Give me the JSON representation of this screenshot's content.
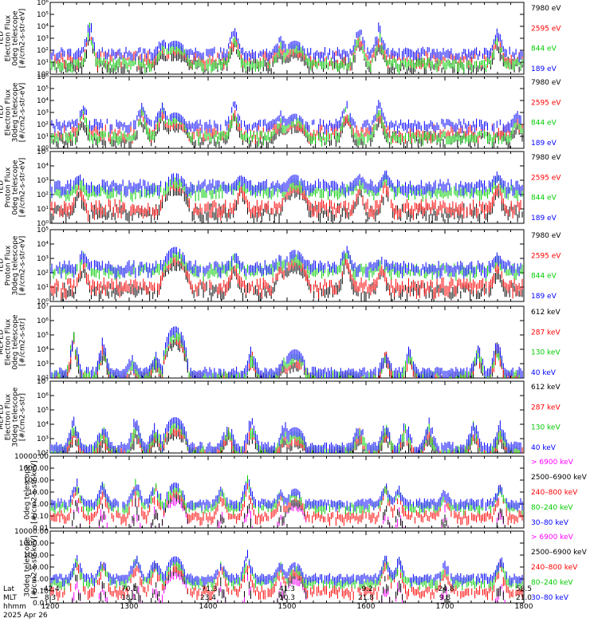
{
  "chart_data": [
    {
      "type": "line",
      "scale": "log",
      "ylim": [
        1,
        1000000
      ],
      "ytick_labels": [
        "10⁰",
        "10¹",
        "10²",
        "10³",
        "10⁴",
        "10⁵",
        "10⁶"
      ],
      "ylabel": [
        "TED",
        "Electron Flux",
        "0deg telescope",
        "[#/cm2-s-str-eV]"
      ],
      "series": [
        {
          "name": "7980 eV",
          "color": "#000000",
          "base": 1.0,
          "noise": 0.5
        },
        {
          "name": "2595 eV",
          "color": "#ff0000",
          "base": 1.5,
          "noise": 0.5
        },
        {
          "name": "844 eV",
          "color": "#00cc00",
          "base": 1.1,
          "noise": 0.3
        },
        {
          "name": "189 eV",
          "color": "#0000ff",
          "base": 2.0,
          "noise": 0.3
        }
      ],
      "bursts": [
        [
          1230,
          0.25,
          5,
          1.4
        ],
        [
          1325,
          0.4,
          3.2,
          1.2
        ],
        [
          1420,
          0.3,
          4.5,
          1.3
        ],
        [
          1455,
          0.4,
          3.4,
          1.2
        ],
        [
          1555,
          0.3,
          4.7,
          1.3
        ],
        [
          1610,
          0.3,
          4.5,
          1.3
        ],
        [
          1740,
          0.25,
          4.4,
          1.3
        ]
      ],
      "domes": [
        [
          1335,
          12,
          2.8
        ],
        [
          1506,
          11,
          2.8
        ]
      ]
    },
    {
      "type": "line",
      "scale": "log",
      "ylim": [
        1,
        1000000
      ],
      "ytick_labels": [
        "10⁰",
        "10¹",
        "10²",
        "10³",
        "10⁴",
        "10⁵",
        "10⁶"
      ],
      "ylabel": [
        "TED",
        "Electron Flux",
        "30deg telescope",
        "[#/cm2-s-str-eV]"
      ],
      "series": [
        {
          "name": "7980 eV",
          "color": "#000000",
          "base": 1.0,
          "noise": 0.5
        },
        {
          "name": "2595 eV",
          "color": "#ff0000",
          "base": 1.6,
          "noise": 0.5
        },
        {
          "name": "844 eV",
          "color": "#00cc00",
          "base": 1.2,
          "noise": 0.3
        },
        {
          "name": "189 eV",
          "color": "#0000ff",
          "base": 2.2,
          "noise": 0.3
        }
      ],
      "bursts": [
        [
          1225,
          0.25,
          4.2,
          1.2
        ],
        [
          1310,
          0.3,
          4.2,
          1.2
        ],
        [
          1325,
          0.4,
          4.4,
          1.2
        ],
        [
          1420,
          0.3,
          4.4,
          1.2
        ],
        [
          1455,
          0.4,
          3.2,
          1.1
        ],
        [
          1545,
          0.3,
          4.4,
          1.2
        ],
        [
          1610,
          0.3,
          4.3,
          1.2
        ],
        [
          1755,
          0.25,
          3.4,
          1.2
        ]
      ],
      "domes": [
        [
          1335,
          12,
          3.0
        ],
        [
          1506,
          11,
          2.9
        ]
      ]
    },
    {
      "type": "line",
      "scale": "log",
      "ylim": [
        1,
        100000
      ],
      "ytick_labels": [
        "10⁰",
        "10¹",
        "10²",
        "10³",
        "10⁴",
        "10⁵"
      ],
      "ylabel": [
        "TED",
        "Proton Flux",
        "0deg telescope",
        "[#/cm2-s-str-eV]"
      ],
      "series": [
        {
          "name": "7980 eV",
          "color": "#000000",
          "base": 1.0,
          "noise": 0.4
        },
        {
          "name": "2595 eV",
          "color": "#ff0000",
          "base": 1.3,
          "noise": 0.4
        },
        {
          "name": "844 eV",
          "color": "#00cc00",
          "base": 2.5,
          "noise": 0.25
        },
        {
          "name": "189 eV",
          "color": "#0000ff",
          "base": 2.8,
          "noise": 0.3
        }
      ],
      "bursts": [
        [
          1222,
          0.3,
          3.6,
          0.8
        ],
        [
          1425,
          0.4,
          3.6,
          0.8
        ],
        [
          1555,
          0.3,
          3.6,
          0.8
        ],
        [
          1615,
          0.25,
          4.0,
          1.0
        ],
        [
          1740,
          0.3,
          3.8,
          0.8
        ]
      ],
      "domes": [
        [
          1335,
          13,
          3.5
        ],
        [
          1506,
          12,
          3.4
        ]
      ]
    },
    {
      "type": "line",
      "scale": "log",
      "ylim": [
        1,
        100000
      ],
      "ytick_labels": [
        "10⁰",
        "10¹",
        "10²",
        "10³",
        "10⁴",
        "10⁵"
      ],
      "ylabel": [
        "TED",
        "Proton Flux",
        "30deg telescope",
        "[#/cm2-s-str-eV]"
      ],
      "series": [
        {
          "name": "7980 eV",
          "color": "#000000",
          "base": 1.0,
          "noise": 0.4
        },
        {
          "name": "2595 eV",
          "color": "#ff0000",
          "base": 1.3,
          "noise": 0.4
        },
        {
          "name": "844 eV",
          "color": "#00cc00",
          "base": 2.4,
          "noise": 0.25
        },
        {
          "name": "189 eV",
          "color": "#0000ff",
          "base": 2.6,
          "noise": 0.3
        }
      ],
      "bursts": [
        [
          1225,
          0.3,
          3.8,
          0.8
        ],
        [
          1420,
          0.3,
          3.7,
          0.8
        ],
        [
          1455,
          0.3,
          3.6,
          0.8
        ],
        [
          1545,
          0.25,
          4.5,
          0.8
        ],
        [
          1612,
          0.3,
          3.4,
          0.8
        ],
        [
          1740,
          0.3,
          3.7,
          0.8
        ]
      ],
      "domes": [
        [
          1335,
          13,
          3.8
        ],
        [
          1506,
          12,
          3.6
        ]
      ]
    },
    {
      "type": "line",
      "scale": "log",
      "ylim": [
        100,
        10000000
      ],
      "ytick_labels": [
        "10²",
        "10³",
        "10⁴",
        "10⁵",
        "10⁶",
        "10⁷"
      ],
      "ylabel": [
        "MEPED",
        "Electron Flux",
        "0deg telescope",
        "[#/cm2-s-str]"
      ],
      "series": [
        {
          "name": "612 keV",
          "color": "#000000",
          "base": 2.1,
          "noise": 0.15
        },
        {
          "name": "287 keV",
          "color": "#ff0000",
          "base": 2.3,
          "noise": 0.15
        },
        {
          "name": "130 keV",
          "color": "#00cc00",
          "base": 2.4,
          "noise": 0.15
        },
        {
          "name": "40 keV",
          "color": "#0000ff",
          "base": 2.6,
          "noise": 0.2
        }
      ],
      "bursts": [
        [
          1218,
          0.3,
          5.8,
          0.4
        ],
        [
          1240,
          0.3,
          5.0,
          0.4
        ],
        [
          1302,
          0.3,
          3.7,
          0.4
        ],
        [
          1320,
          0.3,
          4.0,
          0.4
        ],
        [
          1433,
          0.3,
          4.4,
          0.4
        ],
        [
          1458,
          0.3,
          3.8,
          0.4
        ],
        [
          1575,
          0.3,
          4.4,
          0.4
        ],
        [
          1633,
          0.3,
          4.4,
          0.4
        ],
        [
          1725,
          0.3,
          4.8,
          0.4
        ],
        [
          1740,
          0.3,
          5.2,
          0.4
        ]
      ],
      "domes": [
        [
          1335,
          10,
          5.6
        ],
        [
          1506,
          9,
          4.0
        ]
      ]
    },
    {
      "type": "line",
      "scale": "log",
      "ylim": [
        100,
        10000000
      ],
      "ytick_labels": [
        "10²",
        "10³",
        "10⁴",
        "10⁵",
        "10⁶",
        "10⁷"
      ],
      "ylabel": [
        "MEPED",
        "Electron Flux",
        "30deg telescope",
        "[#/cm2-s-str]"
      ],
      "series": [
        {
          "name": "612 keV",
          "color": "#000000",
          "base": 2.1,
          "noise": 0.15
        },
        {
          "name": "287 keV",
          "color": "#ff0000",
          "base": 2.3,
          "noise": 0.15
        },
        {
          "name": "130 keV",
          "color": "#00cc00",
          "base": 2.4,
          "noise": 0.15
        },
        {
          "name": "40 keV",
          "color": "#0000ff",
          "base": 2.6,
          "noise": 0.2
        }
      ],
      "bursts": [
        [
          1218,
          0.4,
          4.8,
          1.0
        ],
        [
          1240,
          0.4,
          4.4,
          1.0
        ],
        [
          1305,
          0.4,
          4.9,
          1.0
        ],
        [
          1320,
          0.4,
          4.5,
          1.0
        ],
        [
          1415,
          0.4,
          4.7,
          1.0
        ],
        [
          1433,
          0.4,
          4.9,
          1.0
        ],
        [
          1458,
          0.4,
          4.4,
          1.0
        ],
        [
          1555,
          0.4,
          4.6,
          1.0
        ],
        [
          1575,
          0.4,
          4.7,
          1.0
        ],
        [
          1630,
          0.4,
          4.7,
          1.0
        ],
        [
          1648,
          0.4,
          4.5,
          1.0
        ],
        [
          1722,
          0.4,
          4.7,
          1.0
        ],
        [
          1742,
          0.4,
          4.5,
          1.0
        ]
      ],
      "domes": [
        [
          1335,
          10,
          4.5
        ],
        [
          1506,
          9,
          3.8
        ]
      ]
    },
    {
      "type": "line",
      "scale": "log",
      "ylim": [
        0.01,
        10000
      ],
      "ytick_labels": [
        "10000.00",
        "1000.00",
        "100.00",
        "10.00",
        "1.00",
        "0.10",
        "0.01"
      ],
      "ylabel": [
        "0deg telescope",
        "[#/cm2-s-str-keV]"
      ],
      "series": [
        {
          "name": "> 6900 keV",
          "color": "#ff00ff",
          "base": -3,
          "noise": 0
        },
        {
          "name": "2500–6900 keV",
          "color": "#000000",
          "base": -3,
          "noise": 0
        },
        {
          "name": "240–800 keV",
          "color": "#ff0000",
          "base": -0.8,
          "noise": 0.3
        },
        {
          "name": "80–240 keV",
          "color": "#00cc00",
          "base": 0.0,
          "noise": 0.2
        },
        {
          "name": "30–80 keV",
          "color": "#0000ff",
          "base": 0.3,
          "noise": 0.2
        }
      ],
      "bursts": [
        [
          1220,
          0.3,
          2.3,
          0.4
        ],
        [
          1240,
          0.3,
          2.1,
          0.4
        ],
        [
          1305,
          0.4,
          2.3,
          0.5
        ],
        [
          1320,
          0.4,
          2.0,
          0.5
        ],
        [
          1410,
          0.3,
          1.6,
          0.4
        ],
        [
          1430,
          0.3,
          2.6,
          0.4
        ],
        [
          1455,
          0.3,
          1.4,
          0.4
        ],
        [
          1575,
          0.3,
          2.0,
          0.4
        ],
        [
          1625,
          0.3,
          1.6,
          0.4
        ],
        [
          1700,
          0.3,
          1.4,
          0.4
        ],
        [
          1742,
          0.3,
          2.0,
          0.4
        ]
      ],
      "domes": [
        [
          1335,
          10,
          1.8
        ],
        [
          1506,
          9,
          1.3
        ]
      ]
    },
    {
      "type": "line",
      "scale": "log",
      "ylim": [
        0.01,
        10000
      ],
      "ytick_labels": [
        "10000.00",
        "1000.00",
        "100.00",
        "10.00",
        "1.00",
        "0.10",
        "0.01"
      ],
      "ylabel": [
        "30deg telescope",
        "[#/cm2-s-str-keV]"
      ],
      "series": [
        {
          "name": "> 6900 keV",
          "color": "#ff00ff",
          "base": -3,
          "noise": 0
        },
        {
          "name": "2500–6900 keV",
          "color": "#000000",
          "base": -3,
          "noise": 0
        },
        {
          "name": "240–800 keV",
          "color": "#ff0000",
          "base": -0.8,
          "noise": 0.3
        },
        {
          "name": "80–240 keV",
          "color": "#00cc00",
          "base": 0.0,
          "noise": 0.2
        },
        {
          "name": "30–80 keV",
          "color": "#0000ff",
          "base": 0.3,
          "noise": 0.2
        }
      ],
      "bursts": [
        [
          1220,
          0.3,
          2.4,
          0.5
        ],
        [
          1240,
          0.3,
          2.1,
          0.5
        ],
        [
          1305,
          0.4,
          2.3,
          0.5
        ],
        [
          1320,
          0.4,
          2.1,
          0.5
        ],
        [
          1410,
          0.3,
          1.8,
          0.5
        ],
        [
          1430,
          0.3,
          2.6,
          0.5
        ],
        [
          1455,
          0.3,
          1.7,
          0.5
        ],
        [
          1575,
          0.3,
          2.2,
          0.5
        ],
        [
          1625,
          0.3,
          2.0,
          0.5
        ],
        [
          1700,
          0.3,
          1.7,
          0.5
        ],
        [
          1742,
          0.3,
          2.2,
          0.5
        ]
      ],
      "domes": [
        [
          1335,
          10,
          1.9
        ],
        [
          1506,
          9,
          1.4
        ]
      ]
    }
  ],
  "x_axis": {
    "range_hhmm": [
      1200,
      1800
    ],
    "row_labels": [
      "Lat",
      "MLT",
      "hhmm"
    ],
    "columns": [
      {
        "lat": "-42.4",
        "mlt": "8.3",
        "hhmm": "1200"
      },
      {
        "lat": "70.1",
        "mlt": "18.1",
        "hhmm": "1300"
      },
      {
        "lat": "-71.3",
        "mlt": "23.4",
        "hhmm": "1400"
      },
      {
        "lat": "41.3",
        "mlt": "10.3",
        "hhmm": "1500"
      },
      {
        "lat": "-9.2",
        "mlt": "21.8",
        "hhmm": "1600"
      },
      {
        "lat": "-24.8",
        "mlt": "9.8",
        "hhmm": "1700"
      },
      {
        "lat": "58.5",
        "mlt": "21.0",
        "hhmm": "1800"
      }
    ],
    "date": "2025 Apr 26"
  }
}
